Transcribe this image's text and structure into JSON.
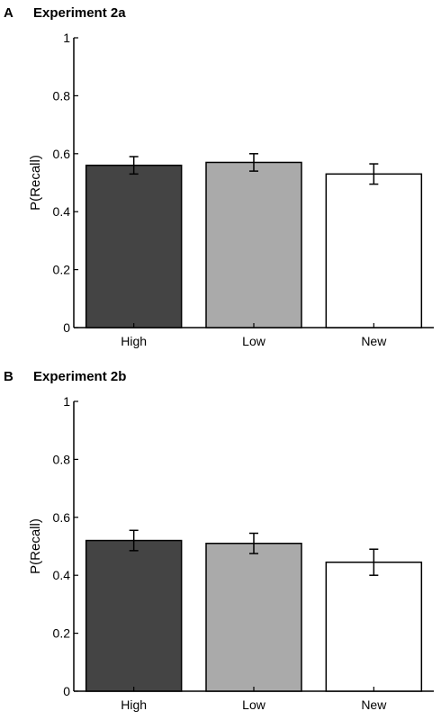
{
  "chart_data": [
    {
      "type": "bar",
      "panel": "A",
      "title": "Experiment 2a",
      "categories": [
        "High",
        "Low",
        "New"
      ],
      "values": [
        0.56,
        0.57,
        0.53
      ],
      "errors": [
        0.03,
        0.03,
        0.035
      ],
      "colors": [
        "#444444",
        "#aaaaaa",
        "#ffffff"
      ],
      "xlabel": "",
      "ylabel": "P(Recall)",
      "ylim": [
        0,
        1
      ],
      "yticks": [
        0,
        0.2,
        0.4,
        0.6,
        0.8,
        1
      ],
      "ytick_labels": [
        "0",
        "0.2",
        "0.4",
        "0.6",
        "0.8",
        "1"
      ],
      "grid": false
    },
    {
      "type": "bar",
      "panel": "B",
      "title": "Experiment 2b",
      "categories": [
        "High",
        "Low",
        "New"
      ],
      "values": [
        0.52,
        0.51,
        0.445
      ],
      "errors": [
        0.035,
        0.035,
        0.045
      ],
      "colors": [
        "#444444",
        "#aaaaaa",
        "#ffffff"
      ],
      "xlabel": "",
      "ylabel": "P(Recall)",
      "ylim": [
        0,
        1
      ],
      "yticks": [
        0,
        0.2,
        0.4,
        0.6,
        0.8,
        1
      ],
      "ytick_labels": [
        "0",
        "0.2",
        "0.4",
        "0.6",
        "0.8",
        "1"
      ],
      "grid": false
    }
  ]
}
